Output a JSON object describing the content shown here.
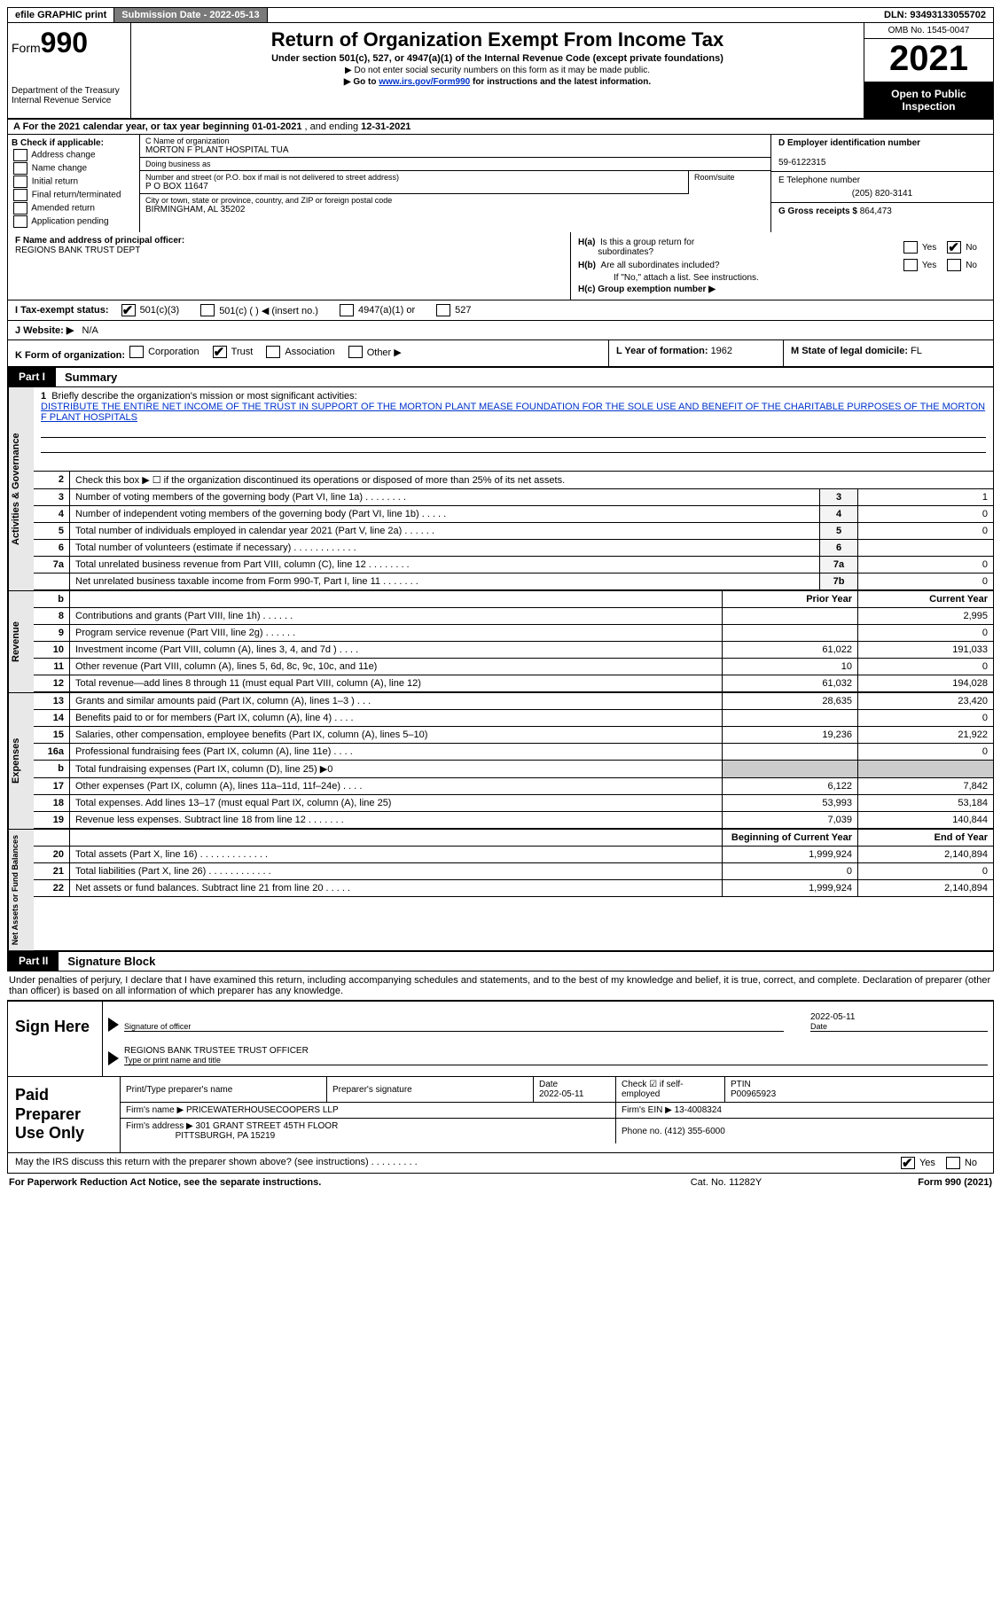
{
  "topbar": {
    "efile": "efile GRAPHIC print",
    "submission_label": "Submission Date - ",
    "submission_date": "2022-05-13",
    "dln_label": "DLN: ",
    "dln": "93493133055702"
  },
  "header": {
    "form_label": "Form",
    "form_number": "990",
    "dept": "Department of the Treasury Internal Revenue Service",
    "title": "Return of Organization Exempt From Income Tax",
    "subtitle": "Under section 501(c), 527, or 4947(a)(1) of the Internal Revenue Code (except private foundations)",
    "note1": "▶ Do not enter social security numbers on this form as it may be made public.",
    "note2_pre": "▶ Go to ",
    "note2_link": "www.irs.gov/Form990",
    "note2_post": " for instructions and the latest information.",
    "omb": "OMB No. 1545-0047",
    "year": "2021",
    "open": "Open to Public Inspection"
  },
  "row_a": {
    "text_pre": "A For the 2021 calendar year, or tax year beginning ",
    "begin": "01-01-2021",
    "mid": " , and ending ",
    "end": "12-31-2021"
  },
  "col_b": {
    "label": "B Check if applicable:",
    "opts": [
      "Address change",
      "Name change",
      "Initial return",
      "Final return/terminated",
      "Amended return",
      "Application pending"
    ]
  },
  "col_c": {
    "name_label": "C Name of organization",
    "name": "MORTON F PLANT HOSPITAL TUA",
    "dba_label": "Doing business as",
    "dba": "",
    "street_label": "Number and street (or P.O. box if mail is not delivered to street address)",
    "street": "P O BOX 11647",
    "room_label": "Room/suite",
    "city_label": "City or town, state or province, country, and ZIP or foreign postal code",
    "city": "BIRMINGHAM, AL  35202"
  },
  "col_d": {
    "ein_label": "D Employer identification number",
    "ein": "59-6122315",
    "phone_label": "E Telephone number",
    "phone": "(205) 820-3141",
    "gross_label": "G Gross receipts $ ",
    "gross": "864,473"
  },
  "col_f": {
    "label": "F  Name and address of principal officer:",
    "value": "REGIONS BANK TRUST DEPT"
  },
  "col_h": {
    "ha_label": "H(a)  Is this a group return for subordinates?",
    "hb_label": "H(b)  Are all subordinates included?",
    "hb_note": "If \"No,\" attach a list. See instructions.",
    "hc_label": "H(c)  Group exemption number ▶",
    "yes": "Yes",
    "no": "No"
  },
  "sec_i": {
    "label": "I  Tax-exempt status:",
    "c3": "501(c)(3)",
    "c": "501(c) (   ) ◀ (insert no.)",
    "a1": "4947(a)(1) or",
    "s527": "527"
  },
  "sec_j": {
    "label": "J  Website: ▶",
    "value": "N/A"
  },
  "sec_k": {
    "label": "K Form of organization:",
    "corp": "Corporation",
    "trust": "Trust",
    "assoc": "Association",
    "other": "Other ▶",
    "l_label": "L Year of formation: ",
    "l_val": "1962",
    "m_label": "M State of legal domicile: ",
    "m_val": "FL"
  },
  "part1": {
    "header": "Part I",
    "title": "Summary",
    "line1_label": "Briefly describe the organization's mission or most significant activities:",
    "mission": "DISTRIBUTE THE ENTIRE NET INCOME OF THE TRUST IN SUPPORT OF THE MORTON PLANT MEASE FOUNDATION FOR THE SOLE USE AND BENEFIT OF THE CHARITABLE PURPOSES OF THE MORTON F PLANT HOSPITALS",
    "line2": "Check this box ▶ ☐  if the organization discontinued its operations or disposed of more than 25% of its net assets.",
    "vtab_ag": "Activities & Governance",
    "vtab_rev": "Revenue",
    "vtab_exp": "Expenses",
    "vtab_net": "Net Assets or Fund Balances",
    "lines_ag": [
      {
        "n": "3",
        "d": "Number of voting members of the governing body (Part VI, line 1a)   .    .    .    .    .    .    .    .",
        "b": "3",
        "v": "1"
      },
      {
        "n": "4",
        "d": "Number of independent voting members of the governing body (Part VI, line 1b)   .    .    .    .    .",
        "b": "4",
        "v": "0"
      },
      {
        "n": "5",
        "d": "Total number of individuals employed in calendar year 2021 (Part V, line 2a)   .    .    .    .    .    .",
        "b": "5",
        "v": "0"
      },
      {
        "n": "6",
        "d": "Total number of volunteers (estimate if necessary)    .    .    .    .    .    .    .    .    .    .    .    .",
        "b": "6",
        "v": ""
      },
      {
        "n": "7a",
        "d": "Total unrelated business revenue from Part VIII, column (C), line 12    .    .    .    .    .    .    .    .",
        "b": "7a",
        "v": "0"
      },
      {
        "n": "",
        "d": "Net unrelated business taxable income from Form 990-T, Part I, line 11   .    .    .    .    .    .    .",
        "b": "7b",
        "v": "0"
      }
    ],
    "prior_label": "Prior Year",
    "current_label": "Current Year",
    "lines_rev": [
      {
        "n": "8",
        "d": "Contributions and grants (Part VIII, line 1h)    .    .    .    .    .    .",
        "p": "",
        "c": "2,995"
      },
      {
        "n": "9",
        "d": "Program service revenue (Part VIII, line 2g)   .    .    .    .    .    .",
        "p": "",
        "c": "0"
      },
      {
        "n": "10",
        "d": "Investment income (Part VIII, column (A), lines 3, 4, and 7d )    .    .    .    .",
        "p": "61,022",
        "c": "191,033"
      },
      {
        "n": "11",
        "d": "Other revenue (Part VIII, column (A), lines 5, 6d, 8c, 9c, 10c, and 11e)",
        "p": "10",
        "c": "0"
      },
      {
        "n": "12",
        "d": "Total revenue—add lines 8 through 11 (must equal Part VIII, column (A), line 12)",
        "p": "61,032",
        "c": "194,028"
      }
    ],
    "lines_exp": [
      {
        "n": "13",
        "d": "Grants and similar amounts paid (Part IX, column (A), lines 1–3 )   .    .    .",
        "p": "28,635",
        "c": "23,420"
      },
      {
        "n": "14",
        "d": "Benefits paid to or for members (Part IX, column (A), line 4)   .    .    .    .",
        "p": "",
        "c": "0"
      },
      {
        "n": "15",
        "d": "Salaries, other compensation, employee benefits (Part IX, column (A), lines 5–10)",
        "p": "19,236",
        "c": "21,922"
      },
      {
        "n": "16a",
        "d": "Professional fundraising fees (Part IX, column (A), line 11e)   .    .    .    .",
        "p": "",
        "c": "0"
      },
      {
        "n": "b",
        "d": "Total fundraising expenses (Part IX, column (D), line 25) ▶0",
        "p": "GRAY",
        "c": "GRAY"
      },
      {
        "n": "17",
        "d": "Other expenses (Part IX, column (A), lines 11a–11d, 11f–24e)   .    .    .    .",
        "p": "6,122",
        "c": "7,842"
      },
      {
        "n": "18",
        "d": "Total expenses. Add lines 13–17 (must equal Part IX, column (A), line 25)",
        "p": "53,993",
        "c": "53,184"
      },
      {
        "n": "19",
        "d": "Revenue less expenses. Subtract line 18 from line 12  .    .    .    .    .    .    .",
        "p": "7,039",
        "c": "140,844"
      }
    ],
    "boy_label": "Beginning of Current Year",
    "eoy_label": "End of Year",
    "lines_net": [
      {
        "n": "20",
        "d": "Total assets (Part X, line 16)  .    .    .    .    .    .    .    .    .    .    .    .    .",
        "p": "1,999,924",
        "c": "2,140,894"
      },
      {
        "n": "21",
        "d": "Total liabilities (Part X, line 26)   .    .    .    .    .    .    .    .    .    .    .    .",
        "p": "0",
        "c": "0"
      },
      {
        "n": "22",
        "d": "Net assets or fund balances. Subtract line 21 from line 20   .    .    .    .    .",
        "p": "1,999,924",
        "c": "2,140,894"
      }
    ]
  },
  "part2": {
    "header": "Part II",
    "title": "Signature Block",
    "declaration": "Under penalties of perjury, I declare that I have examined this return, including accompanying schedules and statements, and to the best of my knowledge and belief, it is true, correct, and complete. Declaration of preparer (other than officer) is based on all information of which preparer has any knowledge.",
    "sign_here": "Sign Here",
    "sig_officer_label": "Signature of officer",
    "sig_date": "2022-05-11",
    "date_label": "Date",
    "officer_name": "REGIONS BANK TRUSTEE  TRUST OFFICER",
    "officer_label": "Type or print name and title",
    "paid_prep": "Paid Preparer Use Only",
    "pt_name_label": "Print/Type preparer's name",
    "pt_sig_label": "Preparer's signature",
    "pt_date_label": "Date",
    "pt_date": "2022-05-11",
    "pt_check_label": "Check ☑ if self-employed",
    "ptin_label": "PTIN",
    "ptin": "P00965923",
    "firm_name_label": "Firm's name      ▶ ",
    "firm_name": "PRICEWATERHOUSECOOPERS LLP",
    "firm_ein_label": "Firm's EIN ▶ ",
    "firm_ein": "13-4008324",
    "firm_addr_label": "Firm's address ▶ ",
    "firm_addr1": "301 GRANT STREET 45TH FLOOR",
    "firm_addr2": "PITTSBURGH, PA  15219",
    "firm_phone_label": "Phone no. ",
    "firm_phone": "(412) 355-6000",
    "discuss": "May the IRS discuss this return with the preparer shown above? (see instructions)   .    .    .    .    .    .    .    .    .",
    "yes": "Yes",
    "no": "No"
  },
  "footer": {
    "left": "For Paperwork Reduction Act Notice, see the separate instructions.",
    "center": "Cat. No. 11282Y",
    "right": "Form 990 (2021)"
  }
}
